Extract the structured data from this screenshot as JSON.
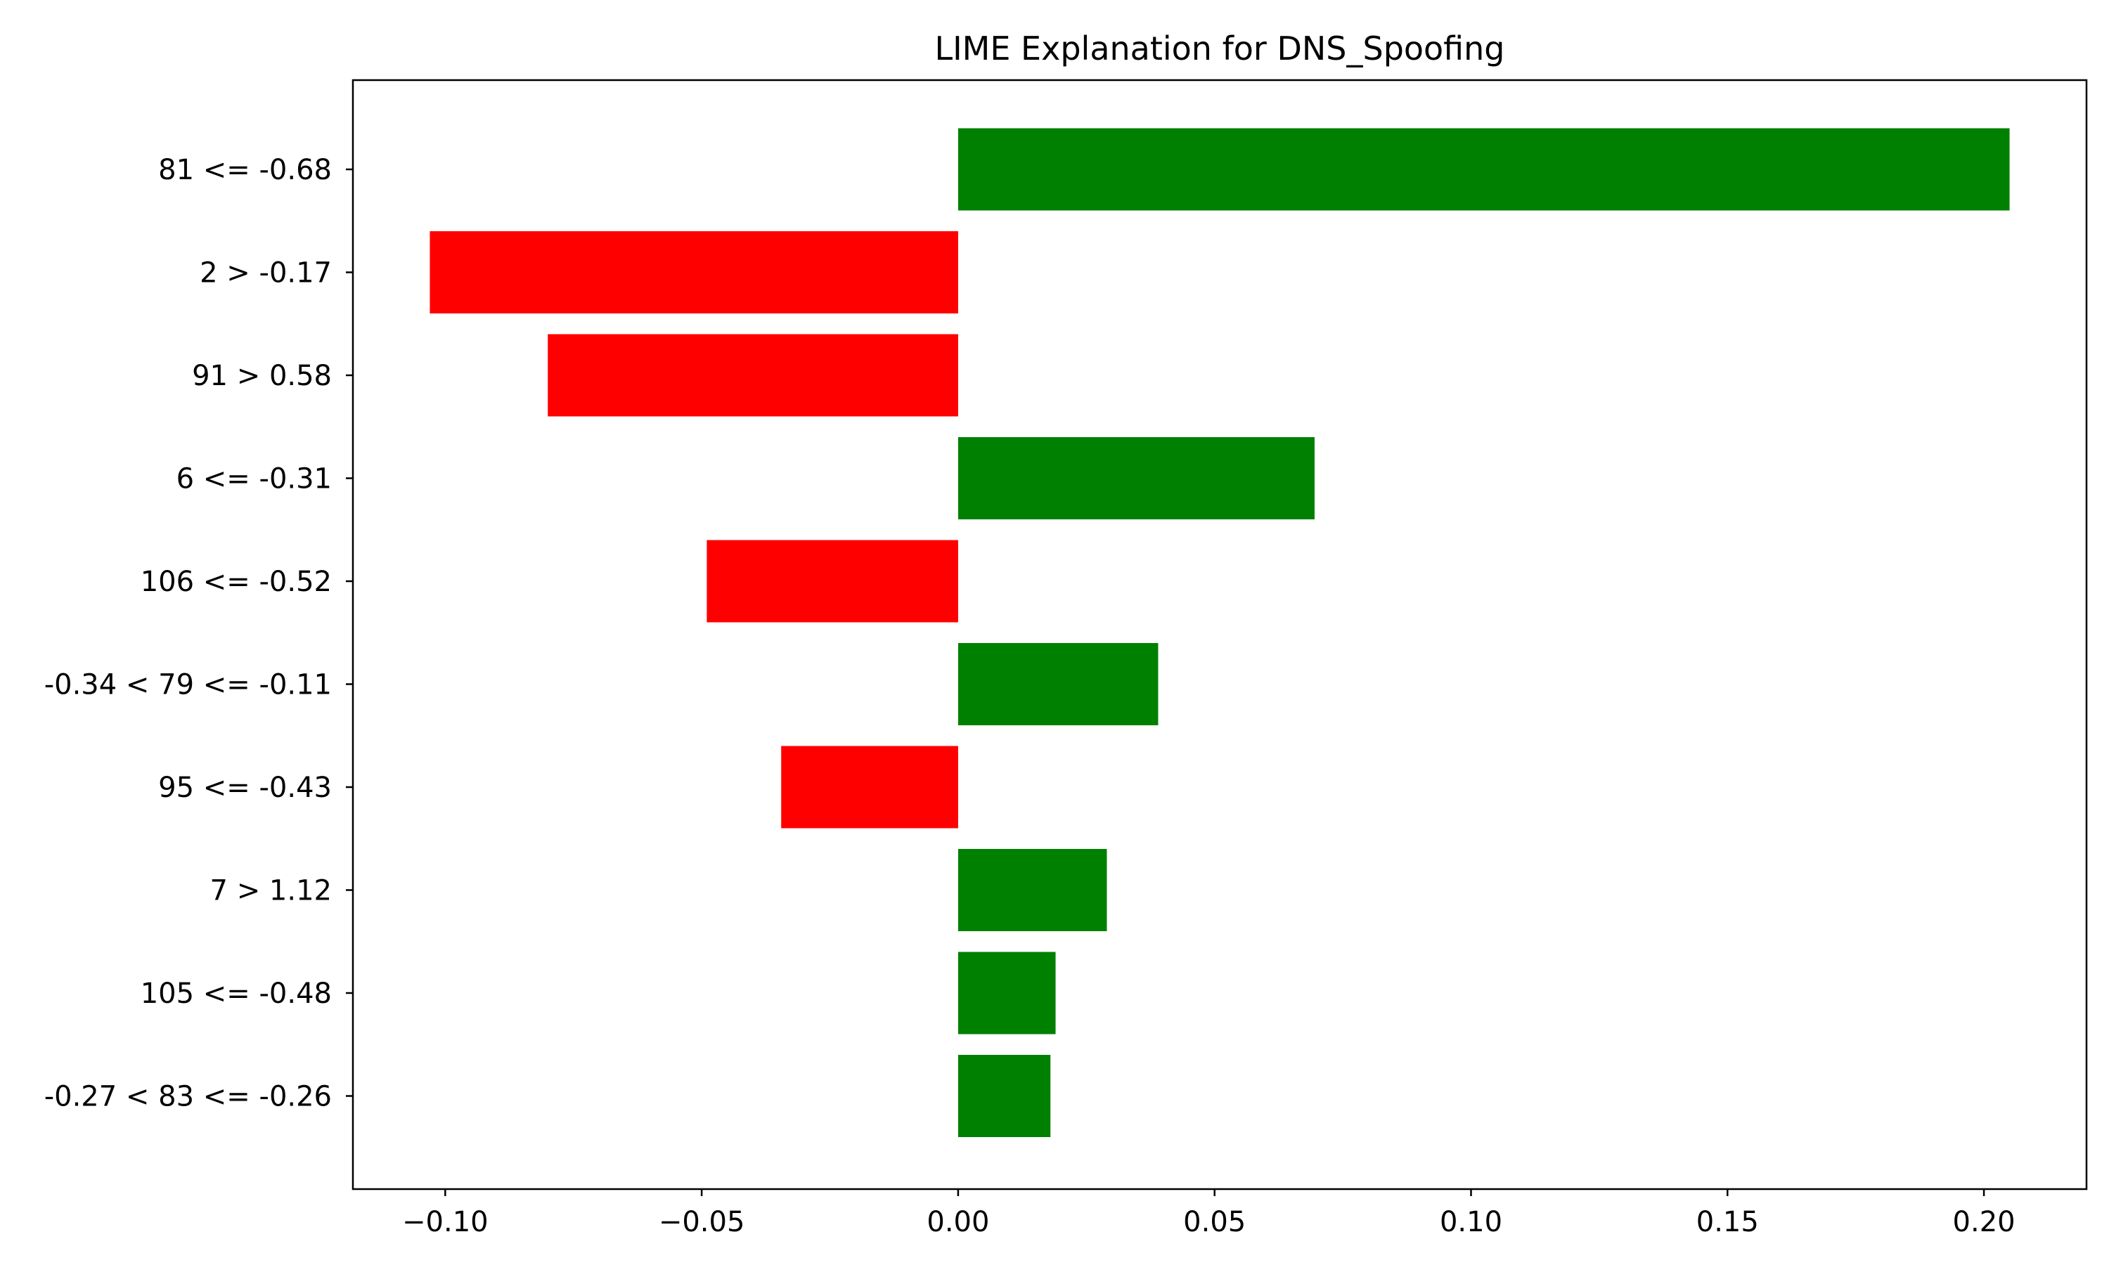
{
  "chart_data": {
    "type": "bar",
    "orientation": "horizontal",
    "title": "LIME Explanation for DNS_Spoofing",
    "xlabel": "",
    "ylabel": "",
    "xlim": [
      -0.118,
      0.22
    ],
    "grid": false,
    "legend": "none",
    "colors": {
      "positive": "#008000",
      "negative": "#ff0000",
      "axes": "#000000",
      "background": "#ffffff"
    },
    "categories": [
      "81 <= -0.68",
      "2 > -0.17",
      "91 > 0.58",
      "6 <= -0.31",
      "106 <= -0.52",
      "-0.34 < 79 <= -0.11",
      "95 <= -0.43",
      "7 > 1.12",
      "105 <= -0.48",
      "-0.27 < 83 <= -0.26"
    ],
    "values": [
      0.205,
      -0.103,
      -0.08,
      0.0695,
      -0.049,
      0.039,
      -0.0345,
      0.029,
      0.019,
      0.018
    ],
    "xticks": [
      -0.1,
      -0.05,
      0.0,
      0.05,
      0.1,
      0.15,
      0.2
    ],
    "xtick_labels": [
      "−0.10",
      "−0.05",
      "0.00",
      "0.05",
      "0.10",
      "0.15",
      "0.20"
    ]
  }
}
